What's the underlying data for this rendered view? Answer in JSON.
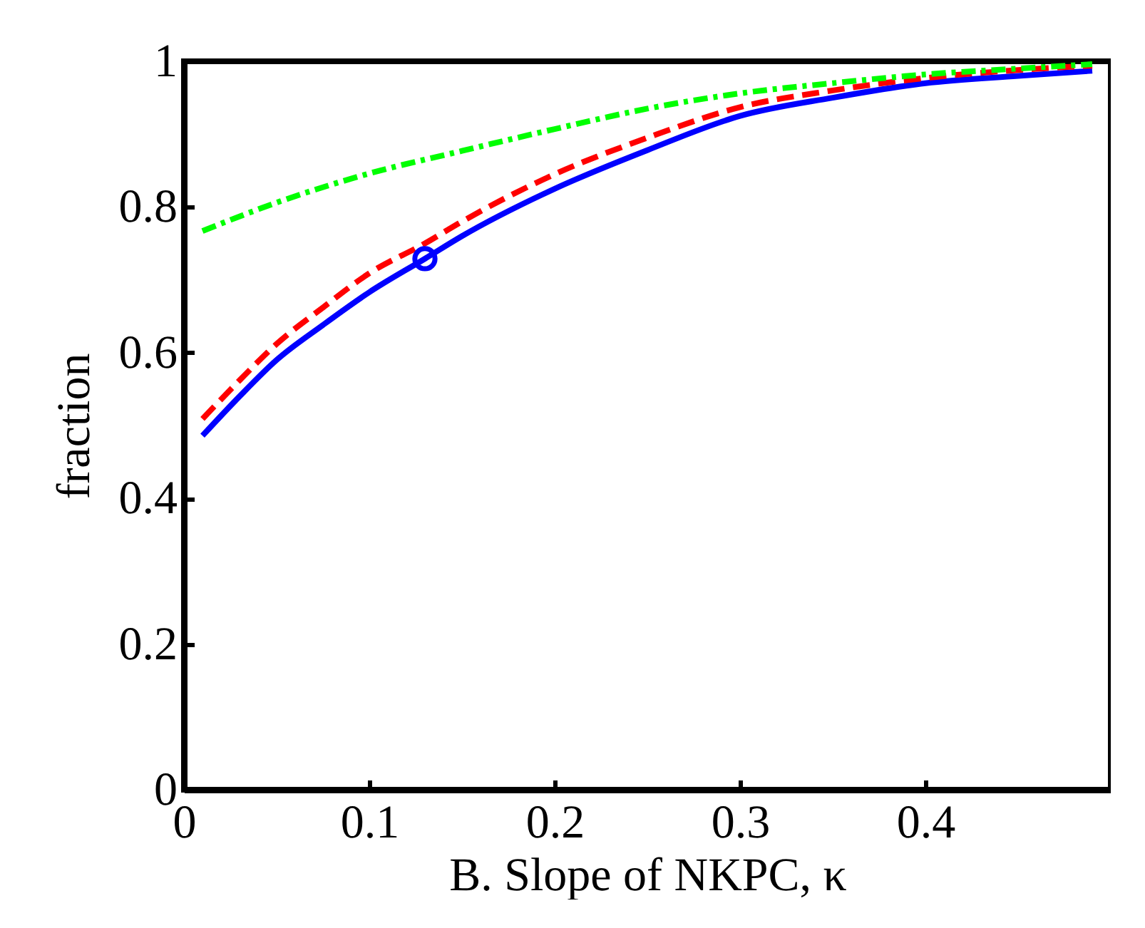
{
  "chart_data": {
    "type": "line",
    "xlabel": "B. Slope of NKPC,  κ",
    "ylabel": "fraction",
    "xlim": [
      0,
      0.5
    ],
    "ylim": [
      0,
      1
    ],
    "xticks": [
      0,
      0.1,
      0.2,
      0.3,
      0.4
    ],
    "yticks": [
      0,
      0.2,
      0.4,
      0.6,
      0.8,
      1
    ],
    "series": [
      {
        "color": "#0000ff",
        "line_style": "solid",
        "x": [
          0.01,
          0.03,
          0.05,
          0.075,
          0.1,
          0.13,
          0.15,
          0.2,
          0.25,
          0.3,
          0.35,
          0.4,
          0.45,
          0.49
        ],
        "values": [
          0.486,
          0.54,
          0.59,
          0.638,
          0.683,
          0.729,
          0.76,
          0.825,
          0.878,
          0.925,
          0.95,
          0.97,
          0.98,
          0.987
        ]
      },
      {
        "color": "#ff0000",
        "line_style": "dashed",
        "x": [
          0.01,
          0.03,
          0.05,
          0.075,
          0.1,
          0.13,
          0.15,
          0.2,
          0.25,
          0.3,
          0.35,
          0.4,
          0.45,
          0.49
        ],
        "values": [
          0.509,
          0.562,
          0.612,
          0.662,
          0.709,
          0.75,
          0.78,
          0.845,
          0.895,
          0.937,
          0.96,
          0.977,
          0.988,
          0.994
        ]
      },
      {
        "color": "#00ff00",
        "line_style": "dashdot",
        "x": [
          0.01,
          0.05,
          0.1,
          0.15,
          0.2,
          0.25,
          0.3,
          0.35,
          0.4,
          0.45,
          0.49
        ],
        "values": [
          0.767,
          0.806,
          0.846,
          0.877,
          0.907,
          0.935,
          0.956,
          0.97,
          0.982,
          0.99,
          0.996
        ]
      },
      {
        "type": "scatter",
        "marker": "circle",
        "color": "#0000ff",
        "x": [
          0.13
        ],
        "values": [
          0.729
        ]
      }
    ]
  }
}
